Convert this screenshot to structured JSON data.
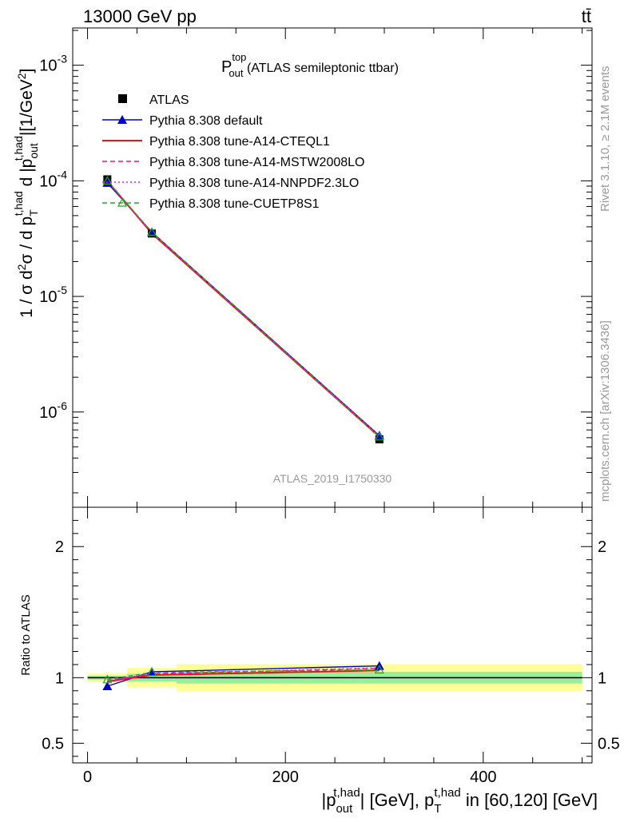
{
  "header": {
    "left": "13000 GeV pp",
    "right": "tt̄"
  },
  "side": {
    "rivet": "Rivet 3.1.10, ≥ 2.1M events",
    "mcplots": "mcplots.cern.ch [arXiv:1306.3436]"
  },
  "watermark": "ATLAS_2019_I1750330",
  "title": {
    "main": "P",
    "sup": "top",
    "sub": "out",
    "rest": " (ATLAS semileptonic ttbar)"
  },
  "ylabel_main": "1 / σ d²σ / d p_T^{t,had} d |p_out^{t,had}| [1/GeV²]",
  "ylabel_ratio": "Ratio to ATLAS",
  "xlabel": "|p_out^{t,had}| [GeV], p_T^{t,had} in [60,120] [GeV]",
  "legend": [
    {
      "label": "ATLAS",
      "color": "#000000",
      "style": "marker-square"
    },
    {
      "label": "Pythia 8.308 default",
      "color": "#0000cc",
      "style": "line-triangle"
    },
    {
      "label": "Pythia 8.308 tune-A14-CTEQL1",
      "color": "#ee1111",
      "style": "solid"
    },
    {
      "label": "Pythia 8.308 tune-A14-MSTW2008LO",
      "color": "#ee1188",
      "style": "dashed"
    },
    {
      "label": "Pythia 8.308 tune-A14-NNPDF2.3LO",
      "color": "#ee11ee",
      "style": "dotted"
    },
    {
      "label": "Pythia 8.308 tune-CUETP8S1",
      "color": "#22aa22",
      "style": "dashed-open-triangle"
    }
  ],
  "chart_data": {
    "type": "line",
    "x": [
      20,
      65,
      295
    ],
    "xlim": [
      -15,
      510
    ],
    "xticks": [
      0,
      200,
      400
    ],
    "ylim_main": [
      1.5e-07,
      0.0021
    ],
    "ylog": true,
    "yticks_main": [
      {
        "value": 0.001,
        "mant": "10",
        "exp": "-3"
      },
      {
        "value": 0.0001,
        "mant": "10",
        "exp": "-4"
      },
      {
        "value": 1e-05,
        "mant": "10",
        "exp": "-5"
      },
      {
        "value": 1e-06,
        "mant": "10",
        "exp": "-6"
      }
    ],
    "ylim_ratio": [
      0.35,
      2.3
    ],
    "yticks_ratio": [
      0.5,
      1,
      2
    ],
    "data": {
      "name": "ATLAS",
      "values": [
        0.000103,
        3.5e-05,
        5.8e-07
      ]
    },
    "bins": [
      {
        "lo": 0,
        "hi": 40,
        "stat": 0.015,
        "tot": 0.035
      },
      {
        "lo": 40,
        "hi": 90,
        "stat": 0.03,
        "tot": 0.075
      },
      {
        "lo": 90,
        "hi": 500,
        "stat": 0.045,
        "tot": 0.105
      }
    ],
    "series": [
      {
        "name": "Pythia 8.308 default",
        "color": "#0000cc",
        "dash": "",
        "marker": "filled-triangle",
        "values": [
          9.6e-05,
          3.6e-05,
          6.25e-07
        ],
        "ratio": [
          0.935,
          1.045,
          1.09
        ]
      },
      {
        "name": "Pythia 8.308 tune-A14-CTEQL1",
        "color": "#ee1111",
        "dash": "",
        "marker": "none",
        "values": [
          0.0001,
          3.5e-05,
          6.1e-07
        ],
        "ratio": [
          0.97,
          1.02,
          1.055
        ]
      },
      {
        "name": "Pythia 8.308 tune-A14-MSTW2008LO",
        "color": "#ee1188",
        "dash": "6,4",
        "marker": "none",
        "values": [
          0.0001,
          3.55e-05,
          6.15e-07
        ],
        "ratio": [
          0.975,
          1.03,
          1.07
        ]
      },
      {
        "name": "Pythia 8.308 tune-A14-NNPDF2.3LO",
        "color": "#ee11ee",
        "dash": "2,3",
        "marker": "none",
        "values": [
          0.0001,
          3.55e-05,
          6.2e-07
        ],
        "ratio": [
          0.975,
          1.03,
          1.075
        ]
      },
      {
        "name": "Pythia 8.308 tune-CUETP8S1",
        "color": "#22aa22",
        "dash": "5,4",
        "marker": "open-triangle",
        "values": [
          0.0001,
          3.6e-05,
          6.1e-07
        ],
        "ratio": [
          0.985,
          1.04,
          1.06
        ]
      }
    ]
  }
}
